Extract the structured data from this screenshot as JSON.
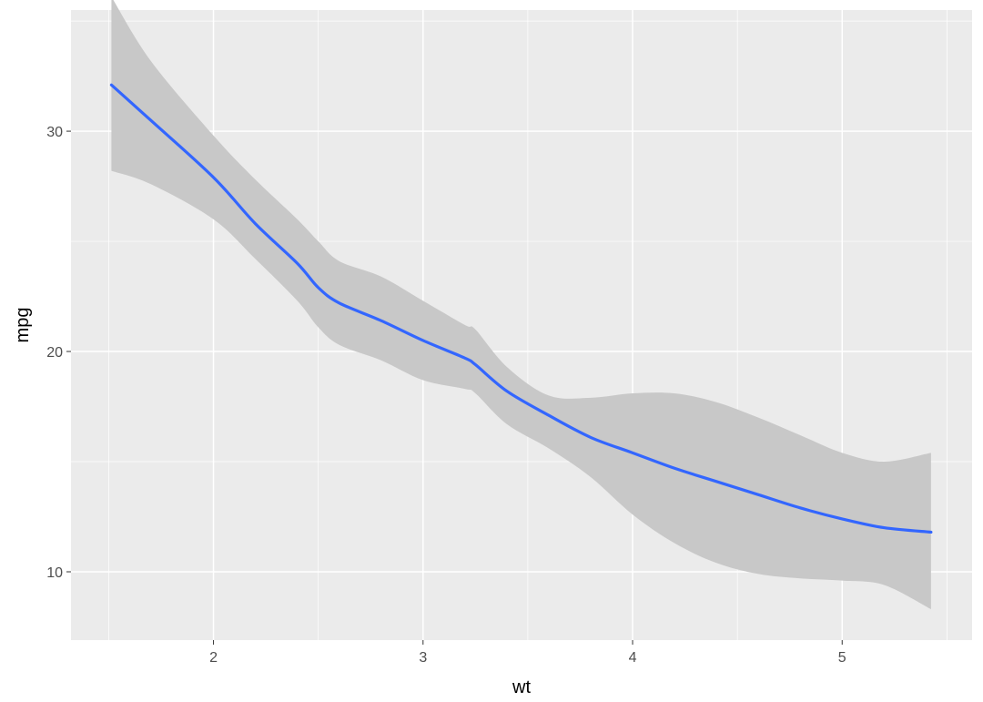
{
  "chart_data": {
    "type": "line",
    "title": "",
    "xlabel": "wt",
    "ylabel": "mpg",
    "xlim": [
      1.32,
      5.62
    ],
    "ylim": [
      6.9,
      35.5
    ],
    "x_ticks": [
      2,
      3,
      4,
      5
    ],
    "x_tick_labels": [
      "2",
      "3",
      "4",
      "5"
    ],
    "y_ticks": [
      10,
      20,
      30
    ],
    "y_tick_labels": [
      "10",
      "20",
      "30"
    ],
    "grid": true,
    "legend": "none",
    "colors": {
      "panel": "#ebebeb",
      "grid": "#ffffff",
      "line": "#3366ff",
      "ribbon": "#c8c8c8",
      "tick_label": "#4d4d4d",
      "axis_title": "#000000"
    },
    "series": [
      {
        "x": [
          1.513,
          1.7,
          2.0,
          2.2,
          2.4,
          2.5,
          2.6,
          2.8,
          3.0,
          3.2,
          3.25,
          3.4,
          3.6,
          3.8,
          4.0,
          4.2,
          4.4,
          4.6,
          4.8,
          5.0,
          5.2,
          5.424
        ],
        "y": [
          32.1,
          30.5,
          27.9,
          25.8,
          24.0,
          22.9,
          22.2,
          21.4,
          20.5,
          19.7,
          19.4,
          18.2,
          17.1,
          16.1,
          15.4,
          14.7,
          14.1,
          13.5,
          12.9,
          12.4,
          12.0,
          11.8
        ],
        "ci_lower": [
          28.2,
          27.6,
          26.0,
          24.2,
          22.3,
          21.1,
          20.3,
          19.6,
          18.7,
          18.3,
          18.1,
          16.7,
          15.6,
          14.3,
          12.6,
          11.3,
          10.4,
          9.9,
          9.7,
          9.6,
          9.4,
          8.3
        ],
        "ci_upper": [
          36.1,
          33.2,
          29.8,
          27.8,
          26.0,
          25.0,
          24.1,
          23.4,
          22.3,
          21.2,
          21.0,
          19.3,
          18.0,
          17.9,
          18.1,
          18.1,
          17.7,
          17.0,
          16.2,
          15.4,
          15.0,
          15.4
        ]
      }
    ]
  }
}
